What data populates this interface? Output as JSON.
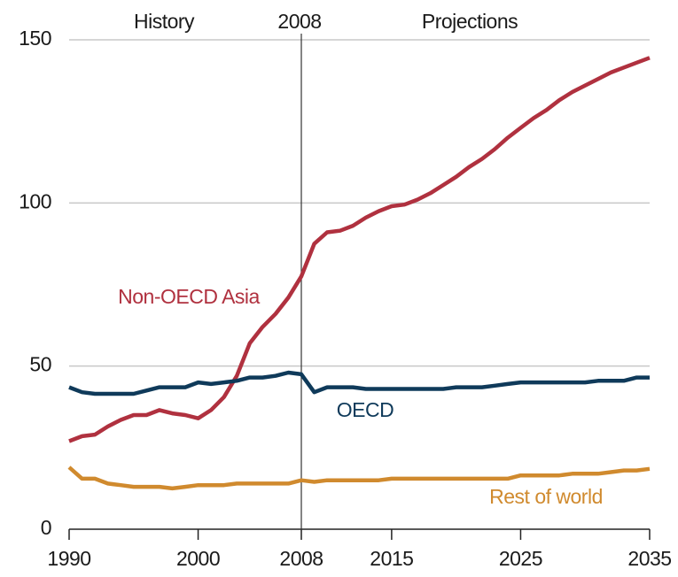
{
  "chart_data": {
    "type": "line",
    "x": [
      1990,
      1991,
      1992,
      1993,
      1994,
      1995,
      1996,
      1997,
      1998,
      1999,
      2000,
      2001,
      2002,
      2003,
      2004,
      2005,
      2006,
      2007,
      2008,
      2009,
      2010,
      2011,
      2012,
      2013,
      2014,
      2015,
      2016,
      2017,
      2018,
      2019,
      2020,
      2021,
      2022,
      2023,
      2024,
      2025,
      2026,
      2027,
      2028,
      2029,
      2030,
      2031,
      2032,
      2033,
      2034,
      2035
    ],
    "series": [
      {
        "name": "Non-OECD Asia",
        "color": "#b0313f",
        "values": [
          27,
          28.5,
          29,
          31.5,
          33.5,
          35,
          35,
          36.5,
          35.5,
          35,
          34,
          36.5,
          40.5,
          47,
          57,
          62,
          66,
          71,
          77.5,
          87.5,
          91,
          91.5,
          93,
          95.5,
          97.5,
          99,
          99.5,
          101,
          103,
          105.5,
          108,
          111,
          113.5,
          116.5,
          120,
          123,
          126,
          128.5,
          131.5,
          134,
          136,
          138,
          140,
          141.5,
          143,
          144.5
        ]
      },
      {
        "name": "OECD",
        "color": "#0f3a5a",
        "values": [
          43.5,
          42,
          41.5,
          41.5,
          41.5,
          41.5,
          42.5,
          43.5,
          43.5,
          43.5,
          45,
          44.5,
          45,
          45.5,
          46.5,
          46.5,
          47,
          48,
          47.5,
          42,
          43.5,
          43.5,
          43.5,
          43,
          43,
          43,
          43,
          43,
          43,
          43,
          43.5,
          43.5,
          43.5,
          44,
          44.5,
          45,
          45,
          45,
          45,
          45,
          45,
          45.5,
          45.5,
          45.5,
          46.5,
          46.5
        ]
      },
      {
        "name": "Rest of world",
        "color": "#d08a2e",
        "values": [
          19,
          15.5,
          15.5,
          14,
          13.5,
          13,
          13,
          13,
          12.5,
          13,
          13.5,
          13.5,
          13.5,
          14,
          14,
          14,
          14,
          14,
          15,
          14.5,
          15,
          15,
          15,
          15,
          15,
          15.5,
          15.5,
          15.5,
          15.5,
          15.5,
          15.5,
          15.5,
          15.5,
          15.5,
          15.5,
          16.5,
          16.5,
          16.5,
          16.5,
          17,
          17,
          17,
          17.5,
          18,
          18,
          18.5
        ]
      }
    ],
    "annotations": [
      "History",
      "2008",
      "Projections"
    ],
    "vline": 2008,
    "xlim": [
      1990,
      2035
    ],
    "xticks": [
      1990,
      2000,
      2008,
      2015,
      2025,
      2035
    ],
    "ylim": [
      0,
      150
    ],
    "yticks": [
      0,
      50,
      100,
      150
    ],
    "grid": true
  }
}
